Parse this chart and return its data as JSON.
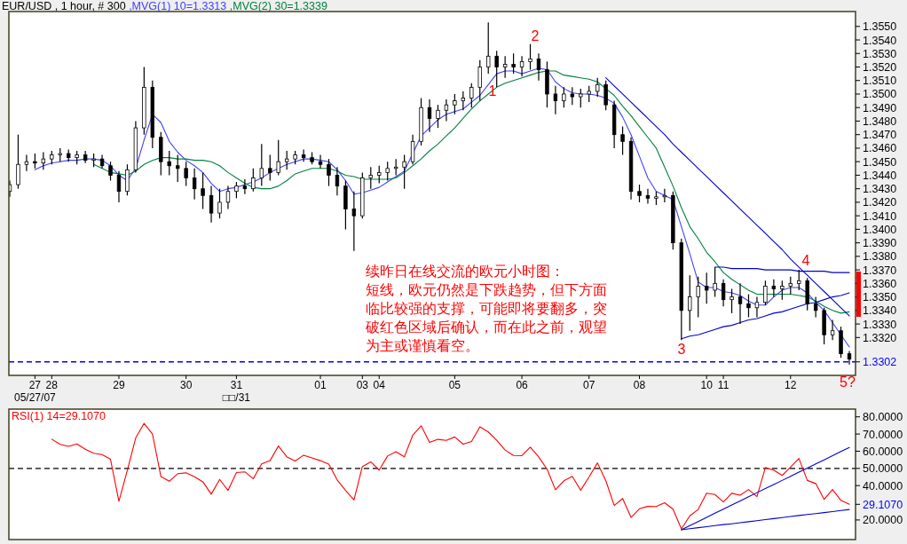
{
  "chart_data": [
    {
      "type": "candlestick",
      "title": "EUR/USD , 1 hour, # 300",
      "color": "#000000",
      "categories": [
        null,
        null,
        null,
        "27\n05/27/07",
        null,
        "28",
        null,
        null,
        null,
        null,
        null,
        null,
        null,
        "29",
        null,
        null,
        null,
        null,
        null,
        null,
        null,
        "30",
        null,
        null,
        null,
        null,
        null,
        "31\n□□/31",
        null,
        null,
        null,
        null,
        null,
        null,
        null,
        null,
        null,
        "01",
        null,
        null,
        null,
        null,
        "03",
        null,
        "04",
        null,
        null,
        null,
        null,
        null,
        null,
        null,
        null,
        "05",
        null,
        null,
        null,
        null,
        null,
        null,
        null,
        "06",
        null,
        null,
        null,
        null,
        null,
        null,
        null,
        "07",
        null,
        null,
        null,
        null,
        null,
        "08",
        null,
        null,
        null,
        null,
        null,
        null,
        null,
        "10",
        null,
        "11",
        null,
        null,
        null,
        null,
        null,
        null,
        null,
        "12",
        null,
        null,
        null,
        null,
        null,
        null,
        null
      ],
      "ohlc": [
        [
          1.3428,
          1.3436,
          1.3424,
          1.3433
        ],
        [
          1.3433,
          1.347,
          1.343,
          1.3448
        ],
        [
          1.3448,
          1.3455,
          1.3443,
          1.345
        ],
        [
          1.345,
          1.3456,
          1.3445,
          1.3449
        ],
        [
          1.3449,
          1.3457,
          1.3444,
          1.3452
        ],
        [
          1.3452,
          1.3458,
          1.3448,
          1.3455
        ],
        [
          1.3455,
          1.346,
          1.345,
          1.3456
        ],
        [
          1.3456,
          1.3459,
          1.345,
          1.3453
        ],
        [
          1.3453,
          1.3458,
          1.3448,
          1.3455
        ],
        [
          1.3455,
          1.3458,
          1.3449,
          1.3451
        ],
        [
          1.3451,
          1.3456,
          1.3446,
          1.3452
        ],
        [
          1.3452,
          1.3455,
          1.3445,
          1.3447
        ],
        [
          1.3447,
          1.345,
          1.3436,
          1.344
        ],
        [
          1.344,
          1.3443,
          1.342,
          1.3428
        ],
        [
          1.3428,
          1.3448,
          1.3425,
          1.3444
        ],
        [
          1.3444,
          1.348,
          1.3442,
          1.3475
        ],
        [
          1.3475,
          1.352,
          1.347,
          1.3505
        ],
        [
          1.3505,
          1.351,
          1.346,
          1.3468
        ],
        [
          1.3468,
          1.3472,
          1.344,
          1.345
        ],
        [
          1.345,
          1.3458,
          1.344,
          1.3447
        ],
        [
          1.3447,
          1.3455,
          1.3435,
          1.3445
        ],
        [
          1.3445,
          1.345,
          1.3432,
          1.3438
        ],
        [
          1.3438,
          1.3445,
          1.3422,
          1.343
        ],
        [
          1.343,
          1.3442,
          1.3415,
          1.3425
        ],
        [
          1.3425,
          1.3432,
          1.3405,
          1.3412
        ],
        [
          1.3412,
          1.343,
          1.3408,
          1.342
        ],
        [
          1.342,
          1.3432,
          1.3415,
          1.3428
        ],
        [
          1.3428,
          1.3435,
          1.3423,
          1.3432
        ],
        [
          1.3432,
          1.3437,
          1.3426,
          1.343
        ],
        [
          1.343,
          1.3445,
          1.3428,
          1.3438
        ],
        [
          1.3438,
          1.3463,
          1.3432,
          1.3445
        ],
        [
          1.3445,
          1.3455,
          1.3436,
          1.3442
        ],
        [
          1.3442,
          1.3466,
          1.344,
          1.345
        ],
        [
          1.345,
          1.3458,
          1.3444,
          1.3452
        ],
        [
          1.3452,
          1.3458,
          1.3448,
          1.3455
        ],
        [
          1.3455,
          1.3459,
          1.345,
          1.3453
        ],
        [
          1.3453,
          1.3457,
          1.3448,
          1.345
        ],
        [
          1.345,
          1.3455,
          1.3445,
          1.3448
        ],
        [
          1.3448,
          1.3452,
          1.3432,
          1.344
        ],
        [
          1.344,
          1.3446,
          1.3425,
          1.3432
        ],
        [
          1.3432,
          1.3436,
          1.34,
          1.3415
        ],
        [
          1.3415,
          1.3428,
          1.3384,
          1.341
        ],
        [
          1.341,
          1.3442,
          1.3408,
          1.3438
        ],
        [
          1.3438,
          1.3446,
          1.343,
          1.344
        ],
        [
          1.344,
          1.3447,
          1.3434,
          1.3442
        ],
        [
          1.3442,
          1.345,
          1.3436,
          1.3445
        ],
        [
          1.3445,
          1.3452,
          1.344,
          1.3446
        ],
        [
          1.3446,
          1.3455,
          1.343,
          1.345
        ],
        [
          1.345,
          1.347,
          1.3448,
          1.3465
        ],
        [
          1.3465,
          1.3497,
          1.3462,
          1.349
        ],
        [
          1.349,
          1.3496,
          1.3472,
          1.3482
        ],
        [
          1.3482,
          1.3492,
          1.3475,
          1.3488
        ],
        [
          1.3488,
          1.3496,
          1.348,
          1.3492
        ],
        [
          1.3492,
          1.35,
          1.3485,
          1.3495
        ],
        [
          1.3495,
          1.3502,
          1.3488,
          1.3497
        ],
        [
          1.3497,
          1.3508,
          1.349,
          1.3505
        ],
        [
          1.3505,
          1.3525,
          1.3495,
          1.352
        ],
        [
          1.352,
          1.3553,
          1.3515,
          1.3528
        ],
        [
          1.3528,
          1.3532,
          1.3505,
          1.352
        ],
        [
          1.352,
          1.3528,
          1.3512,
          1.3522
        ],
        [
          1.3522,
          1.353,
          1.3515,
          1.352
        ],
        [
          1.352,
          1.3528,
          1.3513,
          1.3524
        ],
        [
          1.3524,
          1.3537,
          1.3518,
          1.3526
        ],
        [
          1.3526,
          1.353,
          1.351,
          1.3518
        ],
        [
          1.3518,
          1.3524,
          1.349,
          1.35
        ],
        [
          1.35,
          1.3506,
          1.3485,
          1.3495
        ],
        [
          1.3495,
          1.3505,
          1.349,
          1.35
        ],
        [
          1.35,
          1.3505,
          1.3492,
          1.3498
        ],
        [
          1.3498,
          1.3504,
          1.349,
          1.35
        ],
        [
          1.35,
          1.3506,
          1.3494,
          1.3502
        ],
        [
          1.3502,
          1.3512,
          1.3498,
          1.3507
        ],
        [
          1.3507,
          1.351,
          1.3488,
          1.3492
        ],
        [
          1.3492,
          1.3495,
          1.346,
          1.347
        ],
        [
          1.347,
          1.3476,
          1.3455,
          1.3465
        ],
        [
          1.3465,
          1.3468,
          1.3422,
          1.3428
        ],
        [
          1.3428,
          1.3433,
          1.342,
          1.3425
        ],
        [
          1.3425,
          1.343,
          1.3419,
          1.3423
        ],
        [
          1.3423,
          1.3428,
          1.3418,
          1.3424
        ],
        [
          1.3424,
          1.343,
          1.342,
          1.3425
        ],
        [
          1.3425,
          1.3428,
          1.3385,
          1.339
        ],
        [
          1.339,
          1.3393,
          1.3318,
          1.334
        ],
        [
          1.334,
          1.3366,
          1.3325,
          1.335
        ],
        [
          1.335,
          1.3365,
          1.3335,
          1.3358
        ],
        [
          1.3358,
          1.3368,
          1.3345,
          1.3355
        ],
        [
          1.3355,
          1.3372,
          1.335,
          1.336
        ],
        [
          1.336,
          1.3363,
          1.3343,
          1.3348
        ],
        [
          1.3348,
          1.3356,
          1.3338,
          1.335
        ],
        [
          1.335,
          1.336,
          1.333,
          1.3345
        ],
        [
          1.3345,
          1.3352,
          1.3335,
          1.3342
        ],
        [
          1.3342,
          1.335,
          1.3335,
          1.3346
        ],
        [
          1.3346,
          1.3362,
          1.3344,
          1.3358
        ],
        [
          1.3358,
          1.3363,
          1.335,
          1.3356
        ],
        [
          1.3356,
          1.3362,
          1.3348,
          1.3358
        ],
        [
          1.3358,
          1.3365,
          1.3352,
          1.336
        ],
        [
          1.336,
          1.337,
          1.3355,
          1.3362
        ],
        [
          1.3362,
          1.3364,
          1.334,
          1.3345
        ],
        [
          1.3345,
          1.335,
          1.3335,
          1.334
        ],
        [
          1.334,
          1.3342,
          1.3315,
          1.3322
        ],
        [
          1.3322,
          1.3333,
          1.3318,
          1.3325
        ],
        [
          1.3325,
          1.3328,
          1.3305,
          1.3308
        ],
        [
          1.3308,
          1.331,
          1.33,
          1.3304
        ]
      ],
      "series": [
        {
          "type": "line",
          "name": ",MVG(1) 10=1.3313",
          "color": "#4040ff",
          "values": [
            null,
            null,
            null,
            1.3444,
            1.3447,
            1.3449,
            1.345,
            1.3451,
            1.3451,
            1.3452,
            1.3452,
            1.3451,
            1.3447,
            1.344,
            1.3436,
            1.3445,
            1.3466,
            1.3485,
            1.3479,
            1.3465,
            1.3457,
            1.3451,
            1.3447,
            1.3442,
            1.3434,
            1.3428,
            1.343,
            1.3431,
            1.3433,
            1.3435,
            1.3438,
            1.3442,
            1.3445,
            1.3448,
            1.345,
            1.3452,
            1.3452,
            1.3451,
            1.345,
            1.3444,
            1.3436,
            1.3426,
            1.3427,
            1.3429,
            1.3431,
            1.3435,
            1.3439,
            1.3443,
            1.3456,
            1.3469,
            1.3475,
            1.3481,
            1.3485,
            1.3487,
            1.3489,
            1.3494,
            1.3499,
            1.3507,
            1.3515,
            1.3517,
            1.3517,
            1.3515,
            1.3517,
            1.3519,
            1.3518,
            1.3509,
            1.3504,
            1.3501,
            1.35,
            1.35,
            1.3499,
            1.3497,
            1.3493,
            1.3483,
            1.347,
            1.3454,
            1.3438,
            1.3428,
            1.3425,
            1.3422,
            1.3402,
            1.3382,
            1.3361,
            1.3357,
            1.3357,
            1.3354,
            1.3353,
            1.3351,
            1.3347,
            1.3344,
            1.3344,
            1.335,
            1.3355,
            1.3357,
            1.3357,
            1.3353,
            1.3346,
            1.334,
            1.3331,
            1.3322,
            1.3313
          ]
        },
        {
          "type": "line",
          "name": ",MVG(2) 30=1.3339",
          "color": "#008040",
          "values": [
            null,
            null,
            null,
            null,
            null,
            null,
            null,
            null,
            null,
            null,
            1.3448,
            1.3445,
            1.3442,
            1.3441,
            1.344,
            1.3443,
            1.3448,
            1.3451,
            1.3453,
            1.3453,
            1.3452,
            1.3452,
            1.3451,
            1.3451,
            1.345,
            1.3447,
            1.3442,
            1.3438,
            1.3434,
            1.3431,
            1.343,
            1.343,
            1.3432,
            1.3436,
            1.3441,
            1.3443,
            1.3445,
            1.3445,
            1.3445,
            1.3443,
            1.344,
            1.3439,
            1.3437,
            1.3437,
            1.3437,
            1.3437,
            1.3438,
            1.3442,
            1.3447,
            1.3452,
            1.3458,
            1.3463,
            1.3469,
            1.3475,
            1.3482,
            1.3489,
            1.3495,
            1.35,
            1.3505,
            1.3508,
            1.351,
            1.3512,
            1.3514,
            1.3516,
            1.3517,
            1.3517,
            1.3514,
            1.3513,
            1.3512,
            1.3511,
            1.3509,
            1.3504,
            1.3499,
            1.3491,
            1.3484,
            1.3476,
            1.3468,
            1.346,
            1.3446,
            1.3432,
            1.3416,
            1.3402,
            1.3393,
            1.3383,
            1.3376,
            1.3368,
            1.3363,
            1.3359,
            1.3355,
            1.3352,
            1.3352,
            1.3352,
            1.3352,
            1.3352,
            1.3351,
            1.335,
            1.3347,
            1.3343,
            1.334,
            1.3338,
            1.3339
          ]
        },
        {
          "type": "line",
          "color": "#0000cc",
          "values": [
            null,
            null,
            null,
            null,
            null,
            null,
            null,
            null,
            null,
            null,
            null,
            null,
            null,
            null,
            null,
            null,
            null,
            null,
            null,
            null,
            null,
            null,
            null,
            null,
            null,
            null,
            null,
            null,
            null,
            null,
            null,
            null,
            null,
            null,
            null,
            null,
            null,
            null,
            null,
            null,
            null,
            null,
            null,
            null,
            null,
            null,
            null,
            null,
            null,
            null,
            null,
            null,
            null,
            null,
            null,
            null,
            null,
            null,
            null,
            null,
            null,
            null,
            null,
            null,
            null,
            null,
            null,
            null,
            null,
            null,
            null,
            1.3512,
            1.3506,
            1.35,
            1.3494,
            1.3488,
            1.3482,
            1.3476,
            1.347,
            1.3463,
            1.3457,
            1.3451,
            1.3445,
            1.3439,
            1.3433,
            1.3427,
            1.3421,
            1.3415,
            1.3409,
            1.3403,
            1.3397,
            1.3391,
            1.3385,
            1.3378,
            1.3372,
            1.3366,
            1.336,
            1.3354,
            1.3348,
            1.3342,
            1.3336
          ]
        },
        {
          "type": "line",
          "color": "#0000cc",
          "values": [
            null,
            null,
            null,
            null,
            null,
            null,
            null,
            null,
            null,
            null,
            null,
            null,
            null,
            null,
            null,
            null,
            null,
            null,
            null,
            null,
            null,
            null,
            null,
            null,
            null,
            null,
            null,
            null,
            null,
            null,
            null,
            null,
            null,
            null,
            null,
            null,
            null,
            null,
            null,
            null,
            null,
            null,
            null,
            null,
            null,
            null,
            null,
            null,
            null,
            null,
            null,
            null,
            null,
            null,
            null,
            null,
            null,
            null,
            null,
            null,
            null,
            null,
            null,
            null,
            null,
            null,
            null,
            null,
            null,
            null,
            null,
            null,
            null,
            null,
            null,
            null,
            null,
            null,
            null,
            null,
            null,
            null,
            null,
            null,
            1.3372,
            1.3372,
            1.3371,
            1.3371,
            1.3371,
            1.3371,
            1.337,
            1.337,
            1.337,
            1.337,
            1.3369,
            1.3369,
            1.3369,
            1.3369,
            1.3368,
            1.3368,
            1.3368
          ]
        },
        {
          "type": "line",
          "color": "#0000cc",
          "values": [
            null,
            null,
            null,
            null,
            null,
            null,
            null,
            null,
            null,
            null,
            null,
            null,
            null,
            null,
            null,
            null,
            null,
            null,
            null,
            null,
            null,
            null,
            null,
            null,
            null,
            null,
            null,
            null,
            null,
            null,
            null,
            null,
            null,
            null,
            null,
            null,
            null,
            null,
            null,
            null,
            null,
            null,
            null,
            null,
            null,
            null,
            null,
            null,
            null,
            null,
            null,
            null,
            null,
            null,
            null,
            null,
            null,
            null,
            null,
            null,
            null,
            null,
            null,
            null,
            null,
            null,
            null,
            null,
            null,
            null,
            null,
            null,
            null,
            null,
            null,
            null,
            null,
            null,
            null,
            null,
            1.3319,
            1.3321,
            1.3322,
            1.3324,
            1.3326,
            1.3328,
            1.3329,
            1.3331,
            1.3333,
            1.3334,
            1.3336,
            1.3338,
            1.3339,
            1.3341,
            1.3343,
            1.3345,
            1.3346,
            1.3348,
            1.335,
            1.3351,
            1.3353
          ]
        }
      ],
      "ylim": [
        1.3292,
        1.3561
      ],
      "yticks": [
        {
          "value": 1.332,
          "label": "1.3320"
        },
        {
          "value": 1.333,
          "label": "1.3330"
        },
        {
          "value": 1.334,
          "label": "1.3340"
        },
        {
          "value": 1.335,
          "label": "1.3350"
        },
        {
          "value": 1.336,
          "label": "1.3360"
        },
        {
          "value": 1.337,
          "label": "1.3370"
        },
        {
          "value": 1.338,
          "label": "1.3380"
        },
        {
          "value": 1.339,
          "label": "1.3390"
        },
        {
          "value": 1.34,
          "label": "1.3400"
        },
        {
          "value": 1.341,
          "label": "1.3410"
        },
        {
          "value": 1.342,
          "label": "1.3420"
        },
        {
          "value": 1.343,
          "label": "1.3430"
        },
        {
          "value": 1.344,
          "label": "1.3440"
        },
        {
          "value": 1.345,
          "label": "1.3450"
        },
        {
          "value": 1.346,
          "label": "1.3460"
        },
        {
          "value": 1.347,
          "label": "1.3470"
        },
        {
          "value": 1.348,
          "label": "1.3480"
        },
        {
          "value": 1.349,
          "label": "1.3490"
        },
        {
          "value": 1.35,
          "label": "1.3500"
        },
        {
          "value": 1.351,
          "label": "1.3510"
        },
        {
          "value": 1.352,
          "label": "1.3520"
        },
        {
          "value": 1.353,
          "label": "1.3530"
        },
        {
          "value": 1.354,
          "label": "1.3540"
        },
        {
          "value": 1.355,
          "label": "1.3550"
        }
      ],
      "ref_lines": [
        {
          "axis": "y",
          "value": 1.3302,
          "label": "1.3302",
          "color": "#0000ff",
          "line_style": "dashed"
        }
      ],
      "annotations": [
        "1",
        "2",
        "3",
        "4",
        "5?",
        "续昨日在线交流的欧元小时图：",
        "短线，欧元仍然是下跌趋势，但下方面临比较强的支撑，可能即将要翻多，突破红色区域后确认，而在此之前，观望为主或谨慎看空。"
      ]
    },
    {
      "type": "line",
      "categories": [
        null,
        null,
        null,
        null,
        null,
        null,
        null,
        null,
        null,
        null,
        null,
        null,
        null,
        null,
        null,
        null,
        null,
        null,
        null,
        null,
        null,
        null,
        null,
        null,
        null,
        null,
        null,
        null,
        null,
        null,
        null,
        null,
        null,
        null,
        null,
        null,
        null,
        null,
        null,
        null,
        null,
        null,
        null,
        null,
        null,
        null,
        null,
        null,
        null,
        null,
        null,
        null,
        null,
        null,
        null,
        null,
        null,
        null,
        null,
        null,
        null,
        null,
        null,
        null,
        null,
        null,
        null,
        null,
        null,
        null,
        null,
        null,
        null,
        null,
        null,
        null,
        null,
        null,
        null,
        null,
        null,
        null,
        null,
        null,
        null,
        null,
        null,
        null,
        null,
        null,
        null,
        null,
        null,
        null,
        null,
        null,
        null,
        null,
        null,
        null,
        null
      ],
      "series": [
        {
          "name": "RSI(1) 14=29.1070",
          "color": "#ff0000",
          "values": [
            null,
            null,
            null,
            null,
            null,
            67.0,
            64.0,
            62.8,
            64.2,
            61.1,
            58.8,
            58.0,
            55.3,
            30.9,
            48.8,
            67.7,
            76.2,
            70.0,
            45.3,
            42.5,
            46.9,
            47.4,
            45.1,
            42.2,
            35.0,
            43.6,
            37.2,
            47.6,
            48.0,
            44.0,
            52.6,
            54.5,
            63.0,
            56.8,
            54.3,
            57.7,
            56.1,
            54.5,
            52.5,
            43.3,
            37.2,
            31.7,
            51.1,
            53.8,
            49.0,
            57.2,
            59.7,
            56.7,
            69.3,
            74.8,
            65.1,
            66.9,
            66.3,
            68.3,
            64.1,
            65.7,
            74.2,
            71.2,
            66.4,
            60.7,
            57.5,
            57.4,
            62.4,
            56.7,
            49.5,
            37.6,
            42.8,
            45.4,
            37.3,
            45.0,
            53.2,
            42.8,
            28.4,
            32.5,
            21.5,
            26.5,
            27.9,
            27.8,
            30.0,
            26.3,
            14.8,
            22.4,
            26.1,
            35.6,
            34.8,
            30.5,
            35.5,
            34.4,
            37.7,
            33.6,
            50.5,
            49.0,
            45.9,
            50.8,
            55.8,
            43.0,
            41.2,
            32.0,
            37.7,
            31.4,
            29.1
          ]
        },
        {
          "color": "#0000cc",
          "values": [
            null,
            null,
            null,
            null,
            null,
            null,
            null,
            null,
            null,
            null,
            null,
            null,
            null,
            null,
            null,
            null,
            null,
            null,
            null,
            null,
            null,
            null,
            null,
            null,
            null,
            null,
            null,
            null,
            null,
            null,
            null,
            null,
            null,
            null,
            null,
            null,
            null,
            null,
            null,
            null,
            null,
            null,
            null,
            null,
            null,
            null,
            null,
            null,
            null,
            null,
            null,
            null,
            null,
            null,
            null,
            null,
            null,
            null,
            null,
            null,
            null,
            null,
            null,
            null,
            null,
            null,
            null,
            null,
            null,
            null,
            null,
            null,
            null,
            null,
            null,
            null,
            null,
            null,
            null,
            null,
            14.3,
            16.7,
            19.1,
            21.5,
            23.9,
            26.3,
            28.7,
            31.1,
            33.5,
            35.9,
            38.3,
            40.6,
            43.0,
            45.4,
            47.8,
            50.2,
            52.6,
            55.0,
            57.4,
            59.8,
            62.2
          ]
        },
        {
          "color": "#0000cc",
          "values": [
            null,
            null,
            null,
            null,
            null,
            null,
            null,
            null,
            null,
            null,
            null,
            null,
            null,
            null,
            null,
            null,
            null,
            null,
            null,
            null,
            null,
            null,
            null,
            null,
            null,
            null,
            null,
            null,
            null,
            null,
            null,
            null,
            null,
            null,
            null,
            null,
            null,
            null,
            null,
            null,
            null,
            null,
            null,
            null,
            null,
            null,
            null,
            null,
            null,
            null,
            null,
            null,
            null,
            null,
            null,
            null,
            null,
            null,
            null,
            null,
            null,
            null,
            null,
            null,
            null,
            null,
            null,
            null,
            null,
            null,
            null,
            null,
            null,
            null,
            null,
            null,
            null,
            null,
            null,
            null,
            14.3,
            14.9,
            15.5,
            16.1,
            16.7,
            17.3,
            17.8,
            18.4,
            19.0,
            19.6,
            20.2,
            20.8,
            21.4,
            22.0,
            22.6,
            23.2,
            23.7,
            24.3,
            24.9,
            25.5,
            26.1
          ]
        }
      ],
      "tick_labels": "y",
      "ylim": [
        8.6,
        84.5
      ],
      "yticks": [
        {
          "value": 20,
          "label": "20.0000"
        },
        {
          "value": 40,
          "label": "40.0000"
        },
        {
          "value": 50,
          "label": "50.0000"
        },
        {
          "value": 60,
          "label": "60.0000"
        },
        {
          "value": 70,
          "label": "70.0000"
        },
        {
          "value": 80,
          "label": "80.0000"
        }
      ],
      "ref_lines": [
        {
          "axis": "y",
          "value": 50,
          "color": "#000000",
          "line_style": "dashed"
        }
      ],
      "annotations": [
        "29.1070"
      ]
    }
  ]
}
